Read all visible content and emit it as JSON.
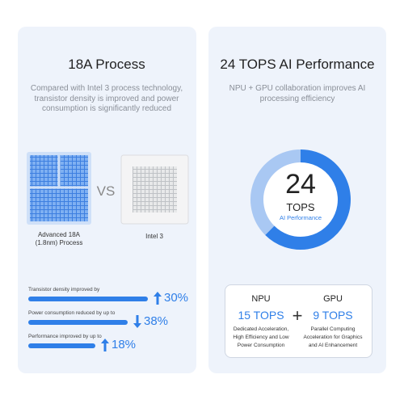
{
  "left": {
    "title": "18A Process",
    "description": "Compared with Intel 3 process technology,\ntransistor density is improved and power\nconsumption is significantly reduced",
    "chips": [
      {
        "label": "Advanced 18A\n(1.8nm) Process"
      },
      {
        "label": "Intel 3"
      }
    ],
    "vs": "VS",
    "metrics": [
      {
        "label": "Transistor density improved by",
        "value_label": "30%",
        "direction": "up"
      },
      {
        "label": "Power consumption reduced by up to",
        "value_label": "38%",
        "direction": "down"
      },
      {
        "label": "Performance improved by up to",
        "value_label": "18%",
        "direction": "up"
      }
    ]
  },
  "right": {
    "title": "24 TOPS AI Performance",
    "description": "NPU + GPU collaboration improves AI\nprocessing efficiency",
    "donut": {
      "center_value": "24",
      "center_unit": "TOPS",
      "center_caption": "AI Performance"
    },
    "plus": "+",
    "cards": [
      {
        "name": "NPU",
        "value": 15,
        "value_label": "15 TOPS",
        "color": "#2f7fe8",
        "description": "Dedicated Acceleration,\nHigh Efficiency and Low\nPower Consumption"
      },
      {
        "name": "GPU",
        "value": 9,
        "value_label": "9 TOPS",
        "color": "#a9c8f3",
        "description": "Parallel Computing\nAcceleration for Graphics\nand AI Enhancement"
      }
    ]
  }
}
